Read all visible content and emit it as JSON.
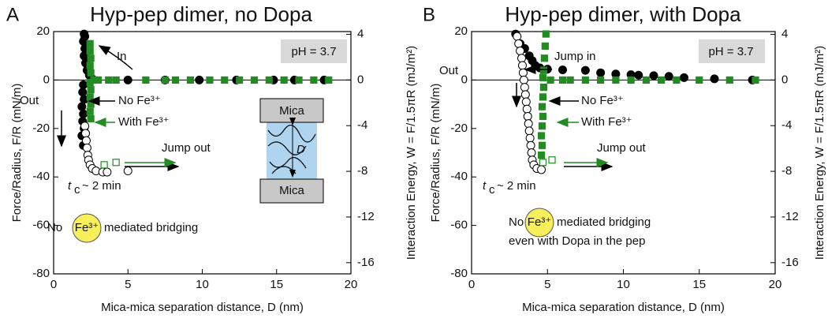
{
  "chart_data": [
    {
      "type": "scatter",
      "label": "A",
      "title": "Hyp-pep dimer, no Dopa",
      "x_label": "Mica-mica separation distance, D (nm)",
      "y_label": "Force/Radius, F/R (mN/m)",
      "y2_label": "Interaction Energy, W = F/1.5πR (mJ/m²)",
      "xlim": [
        0,
        20
      ],
      "xticks": [
        0,
        5,
        10,
        15,
        20
      ],
      "ylim": [
        -80,
        20
      ],
      "yticks": [
        -80,
        -60,
        -40,
        -20,
        0,
        20
      ],
      "y2lim": [
        -16.98,
        4.24
      ],
      "y2ticks": [
        -16,
        -12,
        -8,
        -4,
        0,
        4
      ],
      "series": [
        {
          "color": "#000000",
          "marker": "circle",
          "filled": true,
          "x": [
            2.05,
            2.1,
            2.0,
            2.15,
            2.1,
            2.2,
            2.05,
            2.2,
            2.15,
            2.3,
            2.25,
            2.4,
            2.6,
            2.0,
            1.95,
            2.05,
            1.9,
            2.0,
            1.95,
            2.05,
            1.9,
            2.0,
            5.0,
            7.5,
            9.8,
            12.3,
            14.8,
            16.2,
            18.2
          ],
          "values": [
            19,
            18,
            16,
            15,
            13,
            12,
            10,
            9,
            7,
            6,
            4,
            2,
            0.5,
            -2,
            -5,
            -8,
            -11,
            -14,
            -17,
            -20,
            -23,
            -27,
            0,
            0,
            0,
            0,
            0,
            0,
            0
          ]
        },
        {
          "color": "#000000",
          "marker": "circle",
          "filled": false,
          "x": [
            2.1,
            2.15,
            2.2,
            2.25,
            2.3,
            2.35,
            2.45,
            2.6,
            2.85,
            3.3,
            3.6,
            5.0
          ],
          "values": [
            -19,
            -22,
            -25,
            -28,
            -31,
            -33,
            -35,
            -36.5,
            -37.5,
            -38,
            -38,
            -37.5
          ]
        },
        {
          "color": "#228b22",
          "marker": "square",
          "filled": true,
          "x": [
            2.45,
            2.45,
            2.5,
            2.45,
            2.5,
            2.45,
            2.5,
            2.45,
            2.5,
            2.45,
            2.5,
            2.7,
            3.0,
            3.7,
            4.2,
            6.2,
            7.5,
            8.2,
            9.2,
            10.5,
            11.5,
            12.5,
            13.5,
            14.5,
            15.5,
            16.5,
            17.5,
            18.5
          ],
          "values": [
            15,
            12,
            9,
            6,
            3,
            -1,
            -4,
            -7,
            -10,
            -13,
            -16,
            0,
            0,
            0,
            0,
            0,
            0,
            0,
            0,
            0,
            0,
            0,
            0,
            0,
            0,
            0,
            0,
            0
          ]
        },
        {
          "color": "#228b22",
          "marker": "square",
          "filled": false,
          "x": [
            3.4,
            4.2
          ],
          "values": [
            -35,
            -34
          ]
        }
      ],
      "annotations": [
        "In",
        "Out",
        "No Fe³⁺",
        "With Fe³⁺",
        "Jump out",
        "t",
        "c",
        "~ 2 min",
        "pH = 3.7",
        "No",
        "Fe³⁺",
        "mediated bridging",
        "Mica",
        "Mica",
        "D"
      ]
    },
    {
      "type": "scatter",
      "label": "B",
      "title": "Hyp-pep dimer, with Dopa",
      "x_label": "Mica-mica separation distance, D (nm)",
      "y_label": "Force/Radius, F/R (mN/m)",
      "y2_label": "Interaction Energy, W = F/1.5πR (mJ/m²)",
      "xlim": [
        0,
        20
      ],
      "xticks": [
        0,
        5,
        10,
        15,
        20
      ],
      "ylim": [
        -80,
        20
      ],
      "yticks": [
        -80,
        -60,
        -40,
        -20,
        0,
        20
      ],
      "y2lim": [
        -16.98,
        4.24
      ],
      "y2ticks": [
        -16,
        -12,
        -8,
        -4,
        0,
        4
      ],
      "series": [
        {
          "color": "#000000",
          "marker": "circle",
          "filled": true,
          "x": [
            2.9,
            3.2,
            3.5,
            3.8,
            4.0,
            4.2,
            4.5,
            5.0,
            6.0,
            7.5,
            8.5,
            9.5,
            10.5,
            11.0,
            12.0,
            13.0,
            14.0,
            16.0,
            18.5
          ],
          "values": [
            19,
            15,
            13,
            10,
            8,
            6,
            5,
            4.5,
            4.2,
            4,
            3,
            2.5,
            2.2,
            2,
            1.8,
            1.5,
            1,
            0.5,
            0
          ]
        },
        {
          "color": "#000000",
          "marker": "circle",
          "filled": false,
          "x": [
            3.0,
            3.1,
            3.2,
            3.3,
            3.35,
            3.4,
            3.45,
            3.5,
            3.55,
            3.6,
            3.65,
            3.7,
            3.75,
            3.8,
            3.85,
            3.9,
            3.95,
            4.0,
            4.1,
            4.3,
            4.6
          ],
          "values": [
            18,
            15,
            12,
            9,
            6,
            3,
            0,
            -3,
            -6,
            -9,
            -12,
            -15,
            -18,
            -21,
            -24,
            -27,
            -30,
            -33,
            -35,
            -36.5,
            -37
          ]
        },
        {
          "color": "#228b22",
          "marker": "square",
          "filled": true,
          "x": [
            4.9,
            4.85,
            4.8,
            4.75,
            4.7,
            4.75,
            4.7,
            4.65,
            4.7,
            4.65,
            4.6,
            4.65,
            4.6,
            5.2,
            6.0,
            6.5,
            7.5,
            8.5,
            9.5,
            10.5,
            11.5,
            12.5,
            13.5,
            15.0,
            17.0,
            18.7
          ],
          "values": [
            19,
            14,
            9,
            4,
            1,
            -3,
            -7,
            -11,
            -15,
            -19,
            -23,
            -27,
            -31,
            0,
            0,
            0,
            0,
            0,
            0,
            0,
            0,
            0,
            0,
            0,
            0,
            0
          ]
        },
        {
          "color": "#228b22",
          "marker": "square",
          "filled": false,
          "x": [
            4.7,
            5.3
          ],
          "values": [
            -34,
            -33
          ]
        }
      ],
      "annotations": [
        "Out",
        "Jump in",
        "No Fe³⁺",
        "With Fe³⁺",
        "Jump out",
        "t",
        "c",
        "~ 2 min",
        "pH = 3.7",
        "No",
        "Fe³⁺",
        "mediated bridging",
        "even with Dopa in the pep"
      ]
    }
  ]
}
